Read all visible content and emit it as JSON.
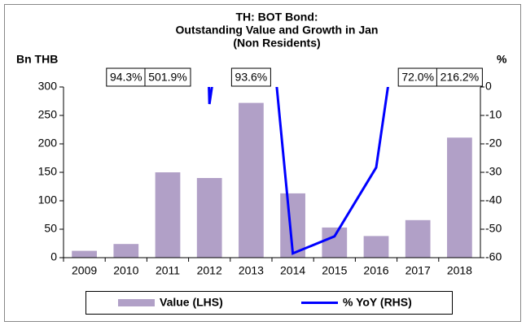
{
  "chart_data": {
    "type": "bar-line",
    "title": [
      "TH: BOT Bond:",
      "Outstanding Value and Growth in Jan",
      "(Non Residents)"
    ],
    "y_label": "Bn THB",
    "y2_label": "%",
    "categories": [
      "2009",
      "2010",
      "2011",
      "2012",
      "2013",
      "2014",
      "2015",
      "2016",
      "2017",
      "2018"
    ],
    "series": [
      {
        "name": "Value (LHS)",
        "type": "bar",
        "color": "#b1a0c7",
        "values": [
          12,
          24,
          150,
          140,
          272,
          113,
          53,
          38,
          66,
          211
        ]
      },
      {
        "name": "% YoY (RHS)",
        "type": "line",
        "axis": "y2",
        "color": "#0000ff",
        "values": [
          null,
          94.3,
          501.9,
          -6,
          93.6,
          -58.5,
          -52.5,
          -28.3,
          72.0,
          216.2
        ],
        "value_labels": [
          null,
          "94.3%",
          "501.9%",
          null,
          "93.6%",
          null,
          null,
          null,
          "72.0%",
          "216.2%"
        ]
      }
    ],
    "ylim": [
      0,
      300
    ],
    "yticks": [
      0,
      50,
      100,
      150,
      200,
      250,
      300
    ],
    "y2lim": [
      -60,
      0
    ],
    "y2ticks": [
      0,
      -10,
      -20,
      -30,
      -40,
      -50,
      -60
    ],
    "legend": "bottom"
  }
}
